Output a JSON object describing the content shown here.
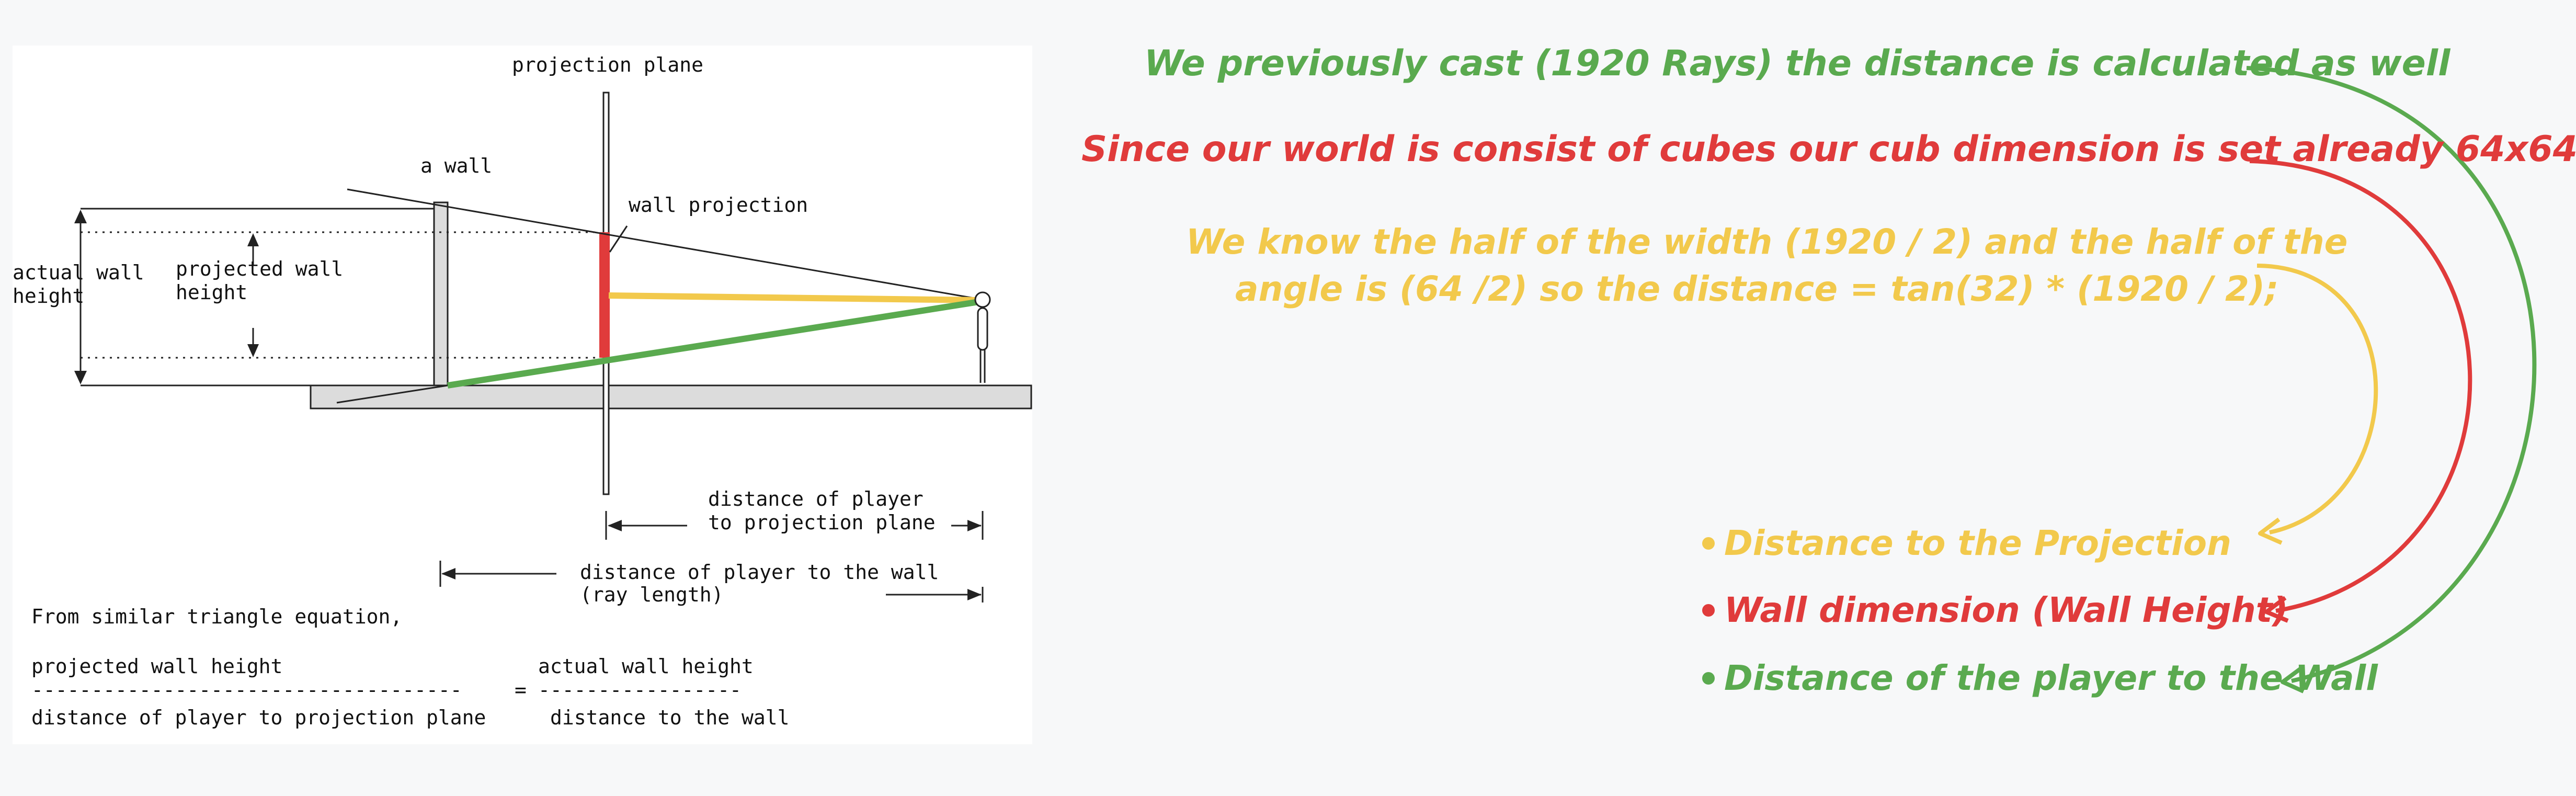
{
  "diagram": {
    "labels": {
      "projection_plane": "projection plane",
      "a_wall": "a wall",
      "wall_projection": "wall projection",
      "actual_wall_height_1": "actual wall",
      "actual_wall_height_2": "height",
      "projected_wall_height_1": "projected wall",
      "projected_wall_height_2": "height",
      "dist_player_plane_1": "distance of player",
      "dist_player_plane_2": "to projection plane",
      "dist_player_wall_1": "distance of player to the wall",
      "dist_player_wall_2": "(ray length)"
    },
    "equation": {
      "intro": "From similar triangle equation,",
      "numerator_left": "projected wall height",
      "numerator_right": "actual wall height",
      "divider_left": "------------------------------------",
      "equals": "=",
      "divider_right": "-----------------",
      "denominator_left": "distance of player to projection plane",
      "denominator_right": "distance to the wall"
    }
  },
  "notes": {
    "note1": "We previously cast  (1920 Rays)  the distance is calculated as well",
    "note2_prefix": "Since our world is consist of cubes our cub dimension is set already ",
    "note2_value": "64x64",
    "note3_line1": "We know the half of the width (1920 / 2) and the half of the",
    "note3_line2": "angle is (64 /2) so the distance = tan(32) * (1920 / 2);"
  },
  "legend": {
    "items": [
      {
        "label": "Distance to the Projection",
        "color": "#f2c94c"
      },
      {
        "label": "Wall dimension (Wall Height)",
        "color": "#e03b3b"
      },
      {
        "label": "Distance of the player to the Wall",
        "color": "#5aaa4f"
      }
    ]
  },
  "colors": {
    "green": "#5aaa4f",
    "red": "#e03b3b",
    "yellow": "#f2c94c"
  }
}
